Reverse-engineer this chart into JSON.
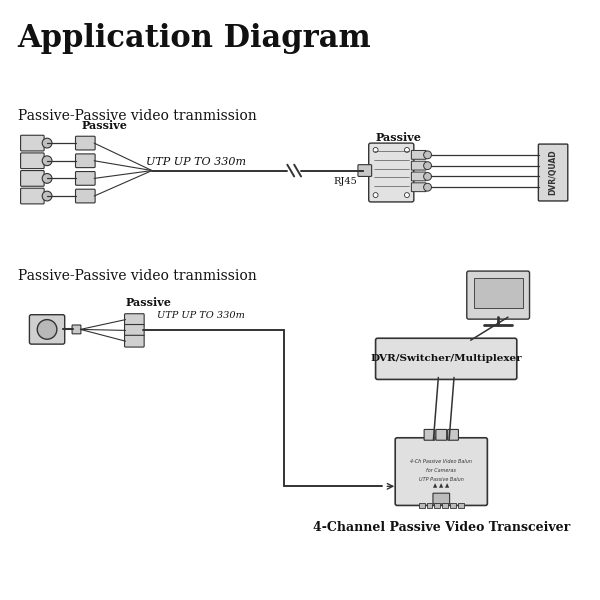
{
  "title": "Application Diagram",
  "section1_label": "Passive-Passive video tranmission",
  "section2_label": "Passive-Passive video tranmission",
  "passive_label1": "Passive",
  "passive_label2": "Passive",
  "passive_label3": "Passive",
  "utp_label1": "UTP UP TO 330m",
  "utp_label2": "UTP UP TO 330m",
  "rj45_label": "RJ45",
  "dvr_quad_label": "DVR/QUAD",
  "dvr2_label": "DVR/Switcher/Multiplexer",
  "transceiver_label": "4-Channel Passive Video Transceiver",
  "bg_color": "#ffffff",
  "lc": "#333333",
  "tc": "#111111"
}
